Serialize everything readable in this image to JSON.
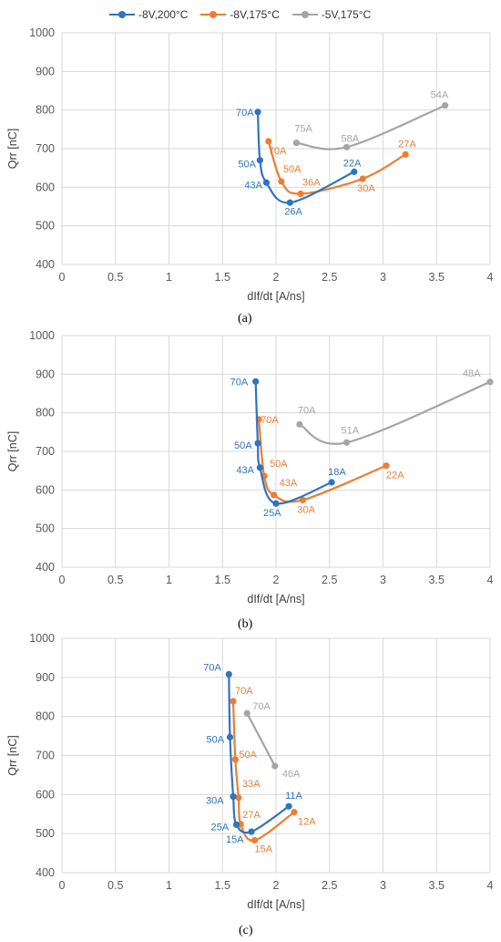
{
  "legend": {
    "items": [
      {
        "label": "-8V,200°C",
        "color": "#2E74C0"
      },
      {
        "label": "-8V,175°C",
        "color": "#ED7D31"
      },
      {
        "label": "-5V,175°C",
        "color": "#A5A5A5"
      }
    ]
  },
  "chart_data": [
    {
      "type": "line",
      "caption": "(a)",
      "xlabel": "dIf/dt [A/ns]",
      "ylabel": "Qrr [nC]",
      "xlim": [
        0,
        4
      ],
      "ylim": [
        400,
        1000
      ],
      "x_ticks": [
        "0",
        "0.5",
        "1",
        "1.5",
        "2",
        "2.5",
        "3",
        "3.5",
        "4"
      ],
      "y_ticks": [
        "400",
        "500",
        "600",
        "700",
        "800",
        "900",
        "1000"
      ],
      "grid": true,
      "legend_position": "top",
      "series": [
        {
          "name": "-8V,200°C",
          "color": "#2E74C0",
          "points": [
            {
              "x": 1.83,
              "y": 795,
              "label": "70A"
            },
            {
              "x": 1.85,
              "y": 670,
              "label": "50A"
            },
            {
              "x": 1.91,
              "y": 612,
              "label": "43A"
            },
            {
              "x": 2.13,
              "y": 560,
              "label": "26A"
            },
            {
              "x": 2.73,
              "y": 640,
              "label": "22A"
            }
          ]
        },
        {
          "name": "-8V,175°C",
          "color": "#ED7D31",
          "points": [
            {
              "x": 1.93,
              "y": 719,
              "label": "70A"
            },
            {
              "x": 2.05,
              "y": 615,
              "label": "50A"
            },
            {
              "x": 2.23,
              "y": 583,
              "label": "36A"
            },
            {
              "x": 2.81,
              "y": 622,
              "label": "30A"
            },
            {
              "x": 3.21,
              "y": 685,
              "label": "27A"
            }
          ]
        },
        {
          "name": "-5V,175°C",
          "color": "#A5A5A5",
          "points": [
            {
              "x": 2.19,
              "y": 715,
              "label": "75A"
            },
            {
              "x": 2.66,
              "y": 704,
              "label": "58A"
            },
            {
              "x": 3.58,
              "y": 812,
              "label": "54A"
            }
          ]
        }
      ]
    },
    {
      "type": "line",
      "caption": "(b)",
      "xlabel": "dIf/dt [A/ns]",
      "ylabel": "Qrr [nC]",
      "xlim": [
        0,
        4
      ],
      "ylim": [
        400,
        1000
      ],
      "x_ticks": [
        "0",
        "0.5",
        "1",
        "1.5",
        "2",
        "2.5",
        "3",
        "3.5",
        "4"
      ],
      "y_ticks": [
        "400",
        "500",
        "600",
        "700",
        "800",
        "900",
        "1000"
      ],
      "grid": true,
      "series": [
        {
          "name": "-8V,200°C",
          "color": "#2E74C0",
          "points": [
            {
              "x": 1.81,
              "y": 881,
              "label": "70A"
            },
            {
              "x": 1.83,
              "y": 721,
              "label": "50A"
            },
            {
              "x": 1.85,
              "y": 658,
              "label": "43A"
            },
            {
              "x": 2.0,
              "y": 565,
              "label": "25A"
            },
            {
              "x": 2.52,
              "y": 620,
              "label": "18A"
            }
          ]
        },
        {
          "name": "-8V,175°C",
          "color": "#ED7D31",
          "points": [
            {
              "x": 1.84,
              "y": 783,
              "label": "70A"
            },
            {
              "x": 1.89,
              "y": 636,
              "label": "50A"
            },
            {
              "x": 1.98,
              "y": 587,
              "label": "43A"
            },
            {
              "x": 2.25,
              "y": 574,
              "label": "30A"
            },
            {
              "x": 3.03,
              "y": 663,
              "label": "22A"
            }
          ]
        },
        {
          "name": "-5V,175°C",
          "color": "#A5A5A5",
          "points": [
            {
              "x": 2.22,
              "y": 770,
              "label": "70A"
            },
            {
              "x": 2.66,
              "y": 723,
              "label": "51A"
            },
            {
              "x": 4.0,
              "y": 880,
              "label": "48A"
            }
          ]
        }
      ]
    },
    {
      "type": "line",
      "caption": "(c)",
      "xlabel": "dIf/dt [A/ns]",
      "ylabel": "Qrr [nC]",
      "xlim": [
        0,
        4
      ],
      "ylim": [
        400,
        1000
      ],
      "x_ticks": [
        "0",
        "0.5",
        "1",
        "1.5",
        "2",
        "2.5",
        "3",
        "3.5",
        "4"
      ],
      "y_ticks": [
        "400",
        "500",
        "600",
        "700",
        "800",
        "900",
        "1000"
      ],
      "grid": true,
      "series": [
        {
          "name": "-8V,200°C",
          "color": "#2E74C0",
          "points": [
            {
              "x": 1.56,
              "y": 908,
              "label": "70A"
            },
            {
              "x": 1.57,
              "y": 747,
              "label": "50A"
            },
            {
              "x": 1.6,
              "y": 595,
              "label": "30A"
            },
            {
              "x": 1.63,
              "y": 523,
              "label": "25A"
            },
            {
              "x": 1.77,
              "y": 505,
              "label": "15A"
            },
            {
              "x": 2.12,
              "y": 570,
              "label": "11A"
            }
          ]
        },
        {
          "name": "-8V,175°C",
          "color": "#ED7D31",
          "points": [
            {
              "x": 1.6,
              "y": 839,
              "label": "70A"
            },
            {
              "x": 1.62,
              "y": 690,
              "label": "50A"
            },
            {
              "x": 1.65,
              "y": 592,
              "label": "33A"
            },
            {
              "x": 1.67,
              "y": 524,
              "label": "27A"
            },
            {
              "x": 1.8,
              "y": 483,
              "label": "15A"
            },
            {
              "x": 2.17,
              "y": 555,
              "label": "12A"
            }
          ]
        },
        {
          "name": "-5V,175°C",
          "color": "#A5A5A5",
          "points": [
            {
              "x": 1.73,
              "y": 808,
              "label": "70A"
            },
            {
              "x": 1.99,
              "y": 673,
              "label": "46A"
            }
          ]
        }
      ]
    }
  ]
}
